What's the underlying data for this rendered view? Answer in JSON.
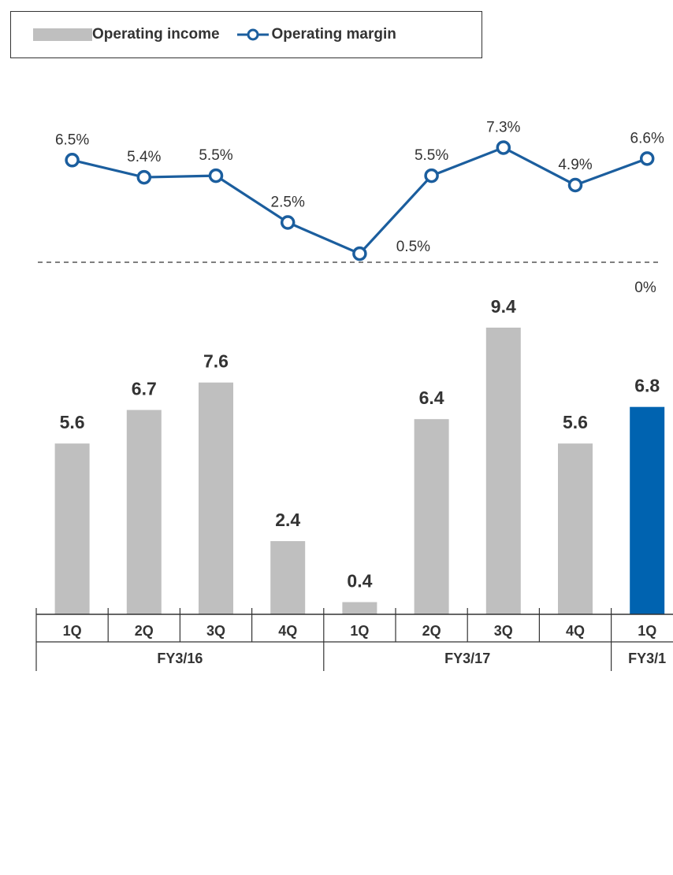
{
  "legend": {
    "income_label": "Operating income",
    "margin_label": "Operating margin"
  },
  "colors": {
    "bar": "#bfbfbf",
    "bar_highlight": "#0063b0",
    "line": "#1b5e9e",
    "text": "#333333"
  },
  "chart_data": {
    "type": "bar",
    "categories": [
      "1Q",
      "2Q",
      "3Q",
      "4Q",
      "1Q",
      "2Q",
      "3Q",
      "4Q",
      "1Q"
    ],
    "groups": [
      {
        "label": "FY3/16",
        "count": 4
      },
      {
        "label": "FY3/17",
        "count": 4
      },
      {
        "label": "FY3/1",
        "count": 1
      }
    ],
    "series": [
      {
        "name": "Operating income",
        "type": "bar",
        "values": [
          5.6,
          6.7,
          7.6,
          2.4,
          0.4,
          6.4,
          9.4,
          5.6,
          6.8
        ],
        "labels": [
          "5.6",
          "6.7",
          "7.6",
          "2.4",
          "0.4",
          "6.4",
          "9.4",
          "5.6",
          "6.8"
        ],
        "highlight_index": 8
      },
      {
        "name": "Operating margin",
        "type": "line",
        "values": [
          6.5,
          5.4,
          5.5,
          2.5,
          0.5,
          5.5,
          7.3,
          4.9,
          6.6
        ],
        "labels": [
          "6.5%",
          "5.4%",
          "5.5%",
          "2.5%",
          "0.5%",
          "5.5%",
          "7.3%",
          "4.9%",
          "6.6%"
        ]
      }
    ],
    "zero_line_label": "0%",
    "ylim": [
      0,
      10
    ]
  }
}
